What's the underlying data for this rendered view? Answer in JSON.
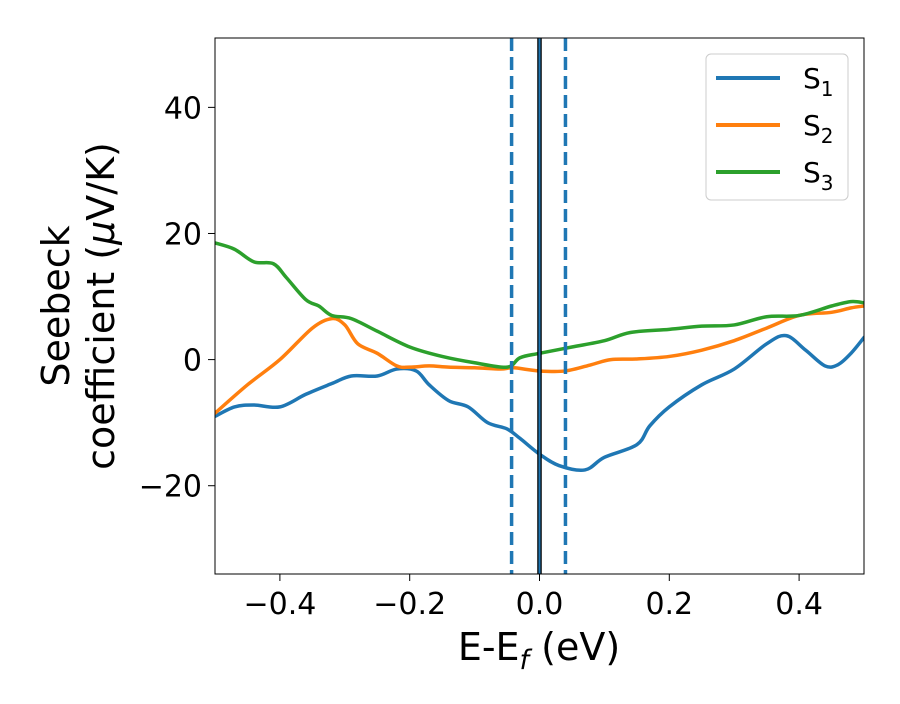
{
  "chart_data": {
    "type": "line",
    "title": "",
    "xlabel": "E-E",
    "xlabel_sub": "f",
    "xlabel_unit": " (eV)",
    "ylabel_line1": "Seebeck",
    "ylabel_line2": "coefficient  (",
    "ylabel_mu": "μ",
    "ylabel_unit": "V/K)",
    "xlim": [
      -0.5,
      0.5
    ],
    "ylim": [
      -34,
      51
    ],
    "xticks": [
      -0.4,
      -0.2,
      0.0,
      0.2,
      0.4
    ],
    "xtick_labels": [
      "−0.4",
      "−0.2",
      "0.0",
      "0.2",
      "0.4"
    ],
    "yticks": [
      -20,
      0,
      20,
      40
    ],
    "ytick_labels": [
      "−20",
      "0",
      "20",
      "40"
    ],
    "grid": false,
    "legend_position": "top-right",
    "vertical_lines": [
      {
        "x": 0.0,
        "color": "#000000",
        "style": "solid"
      },
      {
        "x": 0.0,
        "color": "#1f77b4",
        "style": "solid"
      },
      {
        "x": -0.043,
        "color": "#1f77b4",
        "style": "dashed"
      },
      {
        "x": 0.04,
        "color": "#1f77b4",
        "style": "dashed"
      }
    ],
    "series": [
      {
        "name": "S",
        "sub": "1",
        "color": "#1f77b4",
        "x": [
          -0.5,
          -0.47,
          -0.44,
          -0.4,
          -0.36,
          -0.32,
          -0.29,
          -0.25,
          -0.22,
          -0.19,
          -0.17,
          -0.14,
          -0.11,
          -0.08,
          -0.05,
          -0.03,
          0.0,
          0.03,
          0.07,
          0.1,
          0.15,
          0.17,
          0.2,
          0.25,
          0.3,
          0.35,
          0.38,
          0.41,
          0.44,
          0.46,
          0.48,
          0.5
        ],
        "y": [
          -9,
          -7.5,
          -7.2,
          -7.5,
          -5.5,
          -3.8,
          -2.6,
          -2.6,
          -1.5,
          -1.8,
          -4,
          -6.5,
          -7.5,
          -10,
          -11,
          -12.5,
          -15,
          -16.8,
          -17.5,
          -15.5,
          -13.5,
          -10.5,
          -7.5,
          -4,
          -1.5,
          2.5,
          3.8,
          1.5,
          -1,
          -0.8,
          1,
          3.5
        ]
      },
      {
        "name": "S",
        "sub": "2",
        "color": "#ff7f0e",
        "x": [
          -0.5,
          -0.45,
          -0.4,
          -0.35,
          -0.32,
          -0.3,
          -0.28,
          -0.25,
          -0.22,
          -0.2,
          -0.17,
          -0.14,
          -0.1,
          -0.06,
          -0.04,
          0.0,
          0.04,
          0.08,
          0.11,
          0.15,
          0.2,
          0.25,
          0.3,
          0.35,
          0.4,
          0.45,
          0.48,
          0.5
        ],
        "y": [
          -8.5,
          -4,
          0,
          5,
          6.5,
          5.5,
          2.5,
          1,
          -1,
          -1.2,
          -1,
          -1.2,
          -1.3,
          -1.5,
          -1.3,
          -1.8,
          -1.8,
          -0.8,
          0,
          0.1,
          0.5,
          1.5,
          3,
          5,
          7,
          7.5,
          8.2,
          8.5
        ]
      },
      {
        "name": "S",
        "sub": "3",
        "color": "#2ca02c",
        "x": [
          -0.5,
          -0.47,
          -0.44,
          -0.41,
          -0.39,
          -0.36,
          -0.34,
          -0.32,
          -0.29,
          -0.25,
          -0.2,
          -0.15,
          -0.1,
          -0.05,
          -0.03,
          0.0,
          0.05,
          0.1,
          0.14,
          0.2,
          0.25,
          0.3,
          0.35,
          0.4,
          0.45,
          0.48,
          0.5
        ],
        "y": [
          18.5,
          17.5,
          15.5,
          15.2,
          13,
          9.5,
          8.5,
          7,
          6.5,
          4.5,
          2,
          0.5,
          -0.5,
          -1.2,
          0.3,
          1,
          2,
          3,
          4.3,
          4.8,
          5.3,
          5.5,
          6.8,
          7,
          8.5,
          9.2,
          9
        ]
      }
    ]
  }
}
